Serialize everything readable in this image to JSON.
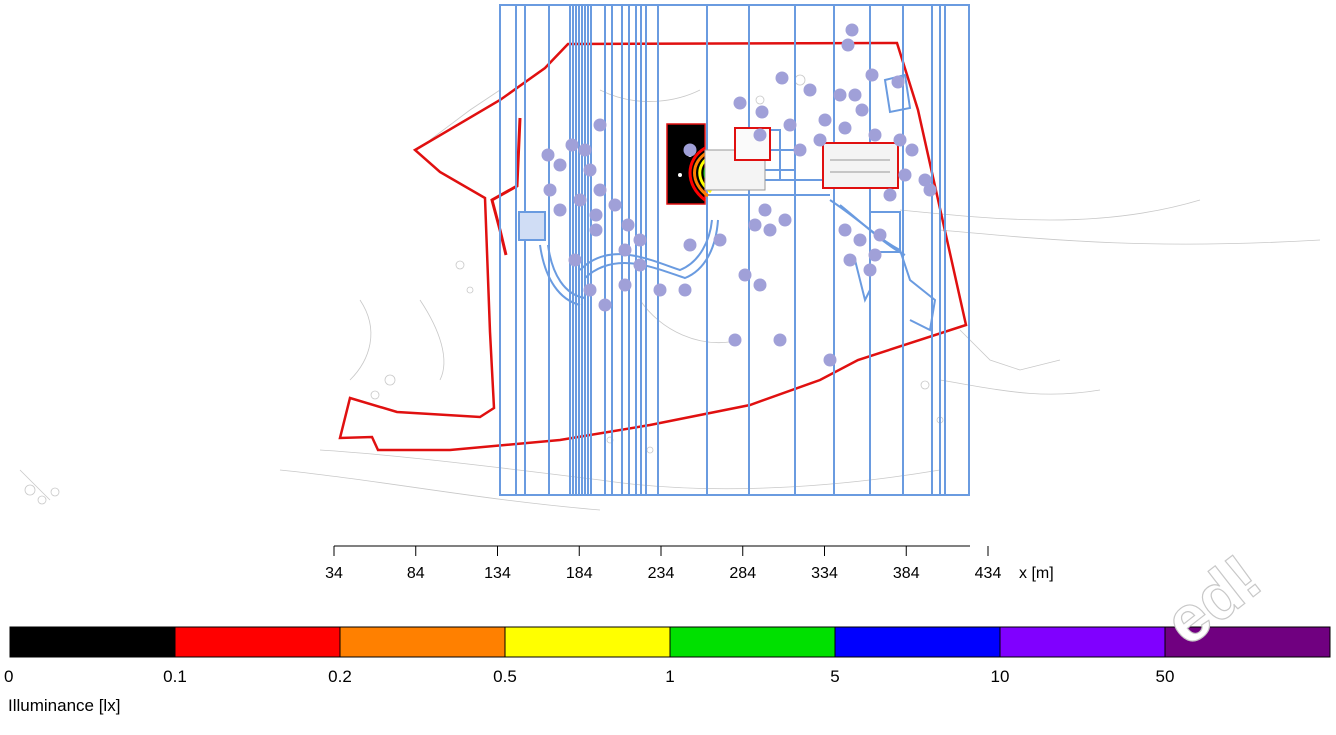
{
  "x_axis": {
    "label": "x [m]",
    "ticks": [
      34,
      84,
      134,
      184,
      234,
      284,
      334,
      384,
      434
    ]
  },
  "legend": {
    "title": "Illuminance [lx]",
    "bins": [
      {
        "label": "0",
        "color": "#000000"
      },
      {
        "label": "0.1",
        "color": "#ff0000"
      },
      {
        "label": "0.2",
        "color": "#ff8000"
      },
      {
        "label": "0.5",
        "color": "#ffff00"
      },
      {
        "label": "1",
        "color": "#00e000"
      },
      {
        "label": "5",
        "color": "#0000ff"
      },
      {
        "label": "10",
        "color": "#8000ff"
      },
      {
        "label": "50",
        "color": "#700080"
      }
    ]
  },
  "map": {
    "boundary_color": "#e01010",
    "grid_color": "#6a9be0",
    "tree_color": "#a0a0d8",
    "basemap_color": "#c8c8c8"
  },
  "watermark": "ed!"
}
